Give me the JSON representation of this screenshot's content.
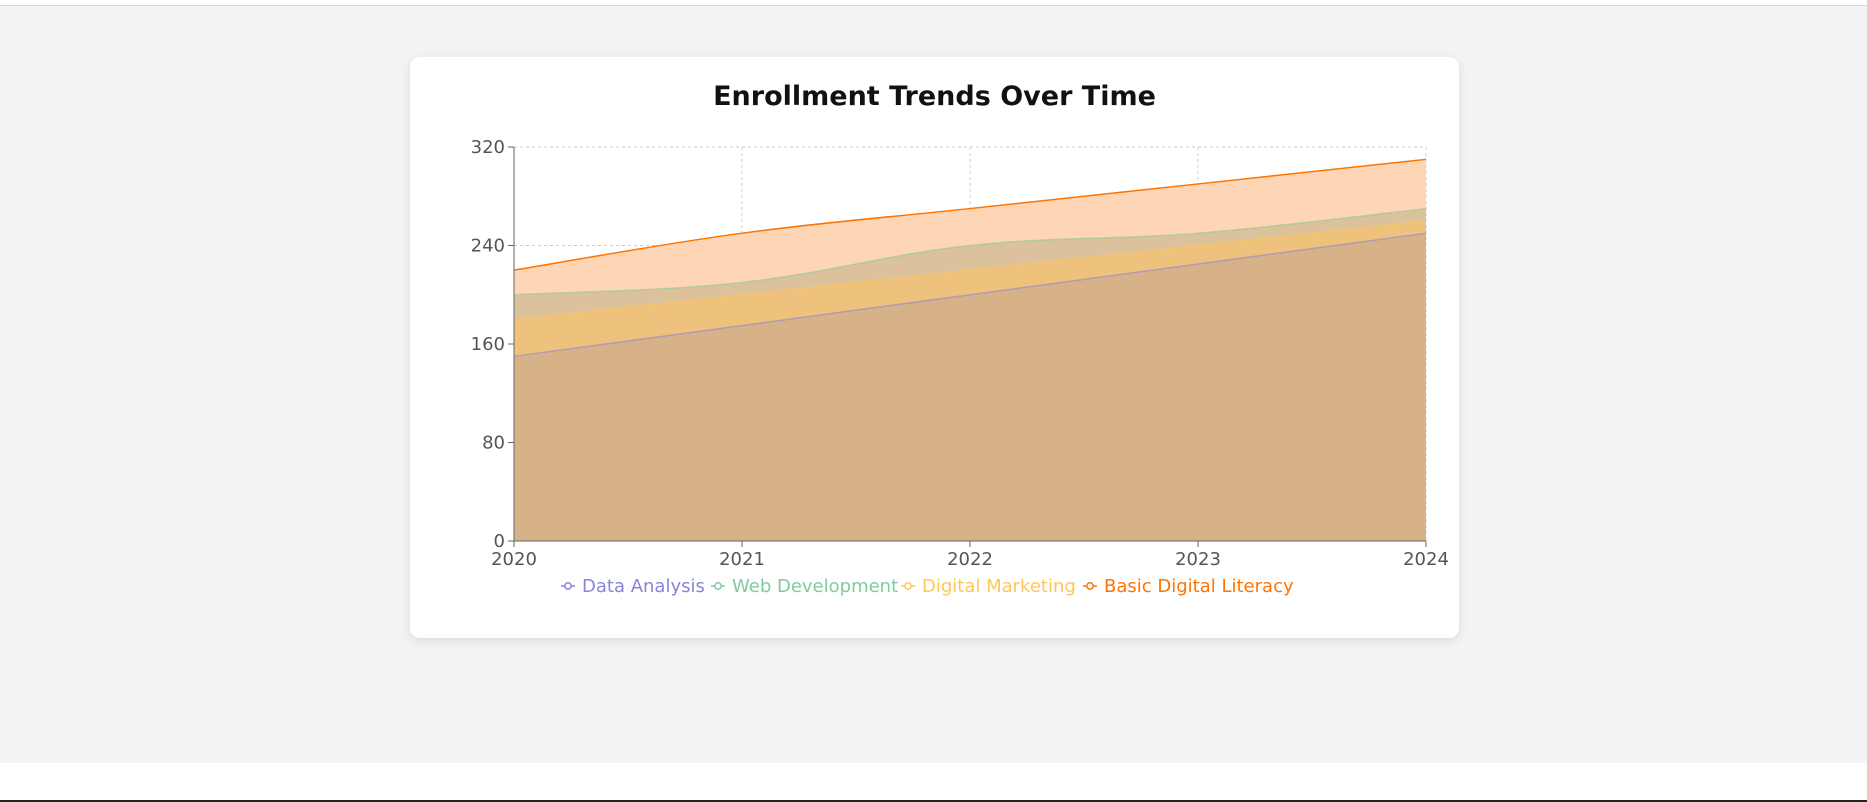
{
  "chart_data": {
    "type": "area",
    "title": "Enrollment Trends Over Time",
    "xlabel": "",
    "ylabel": "",
    "x": [
      "2020",
      "2021",
      "2022",
      "2023",
      "2024"
    ],
    "yticks": [
      "0",
      "80",
      "160",
      "240",
      "320"
    ],
    "ylim": [
      0,
      320
    ],
    "grid": true,
    "legend_position": "bottom",
    "series": [
      {
        "name": "Data Analysis",
        "values": [
          150,
          175,
          200,
          225,
          250
        ],
        "color": "#8884d8",
        "fill": "#d4b08a"
      },
      {
        "name": "Web Development",
        "values": [
          200,
          210,
          240,
          250,
          270
        ],
        "color": "#82ca9d",
        "fill": "#d7c09a"
      },
      {
        "name": "Digital Marketing",
        "values": [
          180,
          200,
          220,
          240,
          260
        ],
        "color": "#ffc658",
        "fill": "#f0c27a"
      },
      {
        "name": "Basic Digital Literacy",
        "values": [
          220,
          250,
          270,
          290,
          310
        ],
        "color": "#ff7300",
        "fill": "#ffd2ad"
      }
    ]
  }
}
